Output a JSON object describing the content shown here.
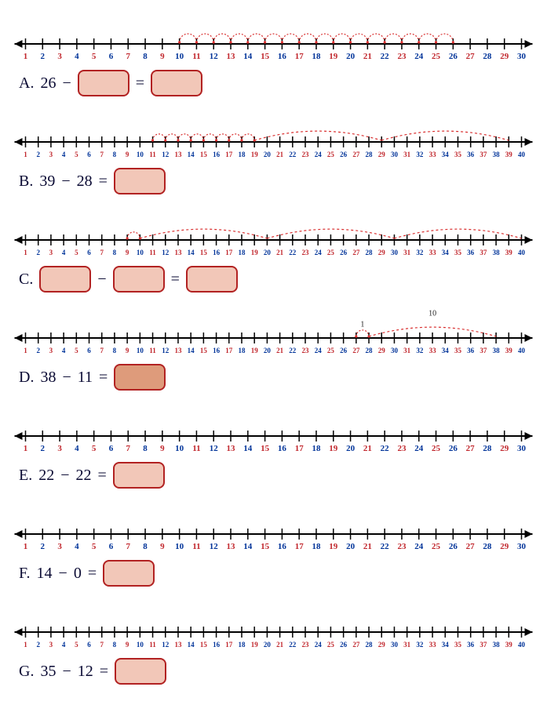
{
  "numberline_colors": {
    "axis": "#000000",
    "red": "#c1272d",
    "blue": "#003399",
    "hop": "#d93030",
    "hop_label": "#222222"
  },
  "answer_box_style": {
    "fill": "#f2c7b8",
    "fill_dark": "#de9b7b",
    "stroke": "#b22222",
    "radius": 8,
    "width": 62,
    "height": 30
  },
  "problems": [
    {
      "id": "A",
      "label": "A.",
      "max": 30,
      "spaced": true,
      "show_zero": false,
      "equation_parts": [
        "26",
        "−",
        "[box]",
        "=",
        "[box]"
      ],
      "hops": {
        "small": {
          "from": 10,
          "to": 26
        },
        "big": []
      }
    },
    {
      "id": "B",
      "label": "B.",
      "max": 40,
      "spaced": false,
      "show_zero": false,
      "equation_parts": [
        "39",
        "−",
        "28",
        "=",
        "[box]"
      ],
      "hops": {
        "small": {
          "from": 11,
          "to": 19
        },
        "big": [
          {
            "from": 19,
            "to": 29
          },
          {
            "from": 29,
            "to": 39
          }
        ]
      }
    },
    {
      "id": "C",
      "label": "C.",
      "max": 40,
      "spaced": false,
      "show_zero": false,
      "equation_parts": [
        "[box]",
        "−",
        "[box]",
        "=",
        "[box]"
      ],
      "hops": {
        "small": {
          "from": 9,
          "to": 10
        },
        "big": [
          {
            "from": 10,
            "to": 20
          },
          {
            "from": 20,
            "to": 30
          },
          {
            "from": 30,
            "to": 40
          }
        ]
      }
    },
    {
      "id": "D",
      "label": "D.",
      "max": 40,
      "spaced": false,
      "show_zero": false,
      "equation_parts": [
        "38",
        "−",
        "11",
        "=",
        "[box-dark]"
      ],
      "hops": {
        "small": {
          "from": 27,
          "to": 28,
          "label": "1"
        },
        "big": [
          {
            "from": 28,
            "to": 38,
            "label": "10"
          }
        ]
      }
    },
    {
      "id": "E",
      "label": "E.",
      "max": 30,
      "spaced": true,
      "show_zero": false,
      "equation_parts": [
        "22",
        "−",
        "22",
        "=",
        "[box]"
      ],
      "hops": null
    },
    {
      "id": "F",
      "label": "F.",
      "max": 30,
      "spaced": true,
      "show_zero": false,
      "equation_parts": [
        "14",
        "−",
        "0",
        "=",
        "[box]"
      ],
      "hops": null
    },
    {
      "id": "G",
      "label": "G.",
      "max": 40,
      "spaced": false,
      "show_zero": false,
      "equation_parts": [
        "35",
        "−",
        "12",
        "=",
        "[box]"
      ],
      "hops": null
    }
  ]
}
